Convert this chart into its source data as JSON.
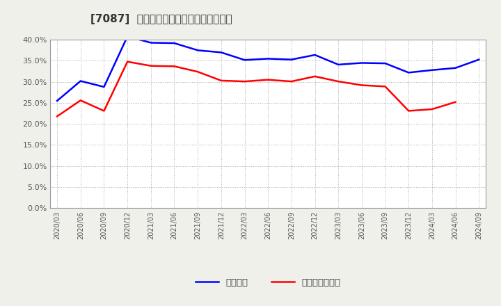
{
  "title": "[7087]  固定比率、固定長期適合率の推移",
  "blue_label": "固定比率",
  "red_label": "固定長期適合率",
  "x_labels": [
    "2020/03",
    "2020/06",
    "2020/09",
    "2020/12",
    "2021/03",
    "2021/06",
    "2021/09",
    "2021/12",
    "2022/03",
    "2022/06",
    "2022/09",
    "2022/12",
    "2023/03",
    "2023/06",
    "2023/09",
    "2023/12",
    "2024/03",
    "2024/06",
    "2024/09"
  ],
  "blue_values": [
    25.5,
    30.2,
    28.8,
    40.8,
    39.3,
    39.2,
    37.5,
    37.0,
    35.2,
    35.5,
    35.3,
    36.4,
    34.1,
    34.5,
    34.4,
    32.2,
    32.8,
    33.3,
    35.3
  ],
  "red_values": [
    21.8,
    25.6,
    23.1,
    34.8,
    33.8,
    33.7,
    32.4,
    30.3,
    30.1,
    30.5,
    30.1,
    31.3,
    30.1,
    29.2,
    28.9,
    23.1,
    23.5,
    25.2,
    null
  ],
  "ylim": [
    0,
    40
  ],
  "yticks": [
    0.0,
    5.0,
    10.0,
    15.0,
    20.0,
    25.0,
    30.0,
    35.0,
    40.0
  ],
  "blue_color": "#0000ff",
  "red_color": "#ff0000",
  "bg_color": "#f0f0eb",
  "plot_bg_color": "#ffffff",
  "grid_color": "#aaaaaa",
  "title_color": "#333333",
  "tick_color": "#555555"
}
